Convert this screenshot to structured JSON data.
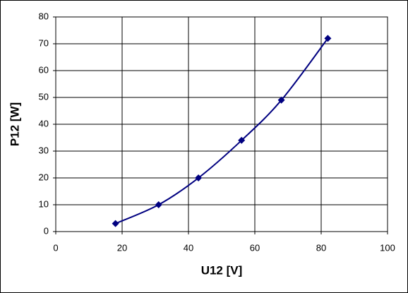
{
  "chart_data": {
    "type": "line",
    "x_label": "U12 [V]",
    "y_label": "P12 [W]",
    "x": [
      18,
      31,
      43,
      56,
      68,
      82
    ],
    "values": [
      3,
      10,
      20,
      34,
      49,
      72
    ],
    "color": "#000080",
    "smooth": true,
    "marker": "diamond",
    "xlim": [
      0,
      100
    ],
    "xticks": [
      0,
      20,
      40,
      60,
      80,
      100
    ],
    "ylim": [
      0,
      80
    ],
    "yticks": [
      0,
      10,
      20,
      30,
      40,
      50,
      60,
      70,
      80
    ],
    "grid": true
  }
}
